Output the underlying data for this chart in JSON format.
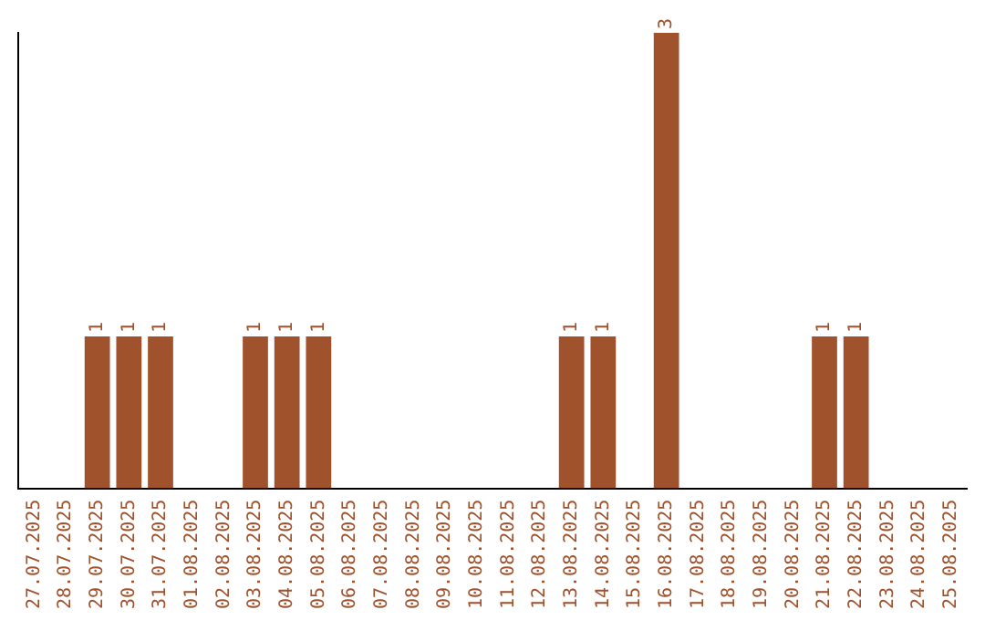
{
  "chart_data": {
    "type": "bar",
    "categories": [
      "27.07.2025",
      "28.07.2025",
      "29.07.2025",
      "30.07.2025",
      "31.07.2025",
      "01.08.2025",
      "02.08.2025",
      "03.08.2025",
      "04.08.2025",
      "05.08.2025",
      "06.08.2025",
      "07.08.2025",
      "08.08.2025",
      "09.08.2025",
      "10.08.2025",
      "11.08.2025",
      "12.08.2025",
      "13.08.2025",
      "14.08.2025",
      "15.08.2025",
      "16.08.2025",
      "17.08.2025",
      "18.08.2025",
      "19.08.2025",
      "20.08.2025",
      "21.08.2025",
      "22.08.2025",
      "23.08.2025",
      "24.08.2025",
      "25.08.2025"
    ],
    "values": [
      0,
      0,
      1,
      1,
      1,
      0,
      0,
      1,
      1,
      1,
      0,
      0,
      0,
      0,
      0,
      0,
      0,
      1,
      1,
      0,
      3,
      0,
      0,
      0,
      0,
      1,
      1,
      0,
      0,
      0
    ],
    "value_labels": [
      null,
      null,
      "1",
      "1",
      "1",
      null,
      null,
      "1",
      "1",
      "1",
      null,
      null,
      null,
      null,
      null,
      null,
      null,
      "1",
      "1",
      null,
      "3",
      null,
      null,
      null,
      null,
      "1",
      "1",
      null,
      null,
      null
    ],
    "color": "#a0522d",
    "grid": false,
    "legend": false,
    "tick_labels": "x"
  }
}
